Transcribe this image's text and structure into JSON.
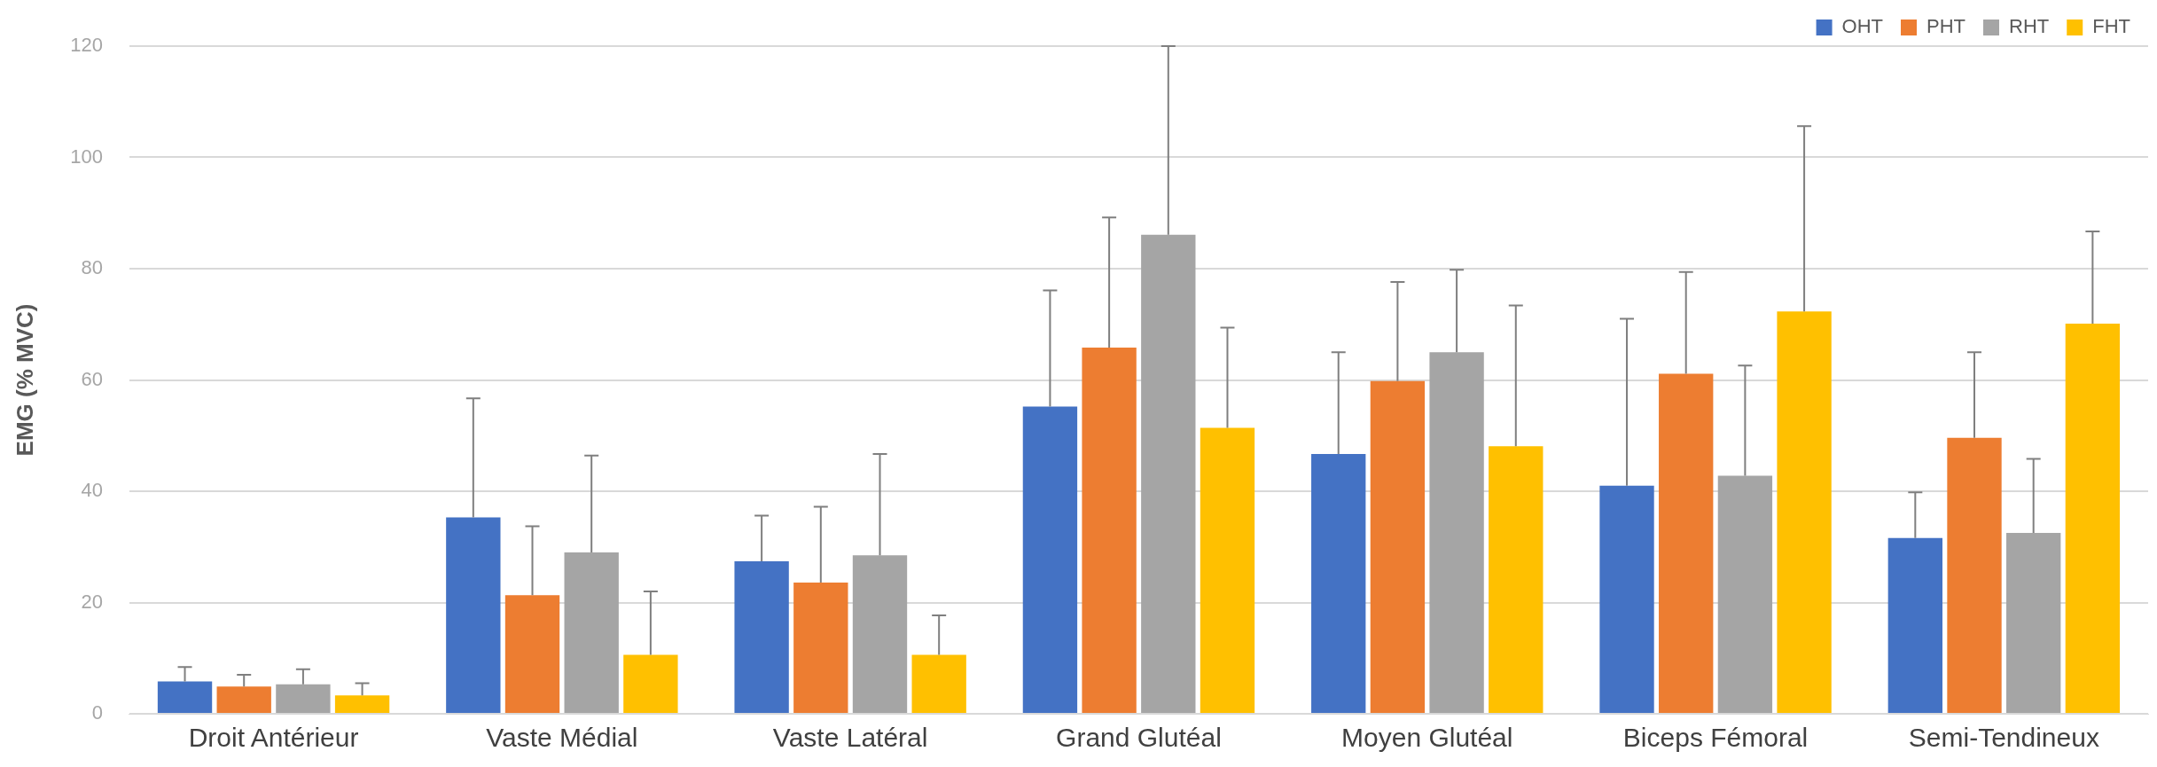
{
  "chart_data": {
    "type": "bar",
    "ylabel": "EMG (% MVC)",
    "categories": [
      "Droit Antérieur",
      "Vaste Médial",
      "Vaste Latéral",
      "Grand Glutéal",
      "Moyen Glutéal",
      "Biceps Fémoral",
      "Semi-Tendineux"
    ],
    "series": [
      {
        "name": "OHT",
        "color": "#4472c4",
        "values": [
          5.8,
          35.3,
          27.4,
          55.2,
          46.7,
          41,
          31.6
        ],
        "errors": [
          [
            5.8,
            8.4
          ],
          [
            35.3,
            56.7
          ],
          [
            27.4,
            35.6
          ],
          [
            55.2,
            76.1
          ],
          [
            46.7,
            65
          ],
          [
            41,
            71
          ],
          [
            31.6,
            39.8
          ]
        ]
      },
      {
        "name": "PHT",
        "color": "#ed7d31",
        "values": [
          4.9,
          21.3,
          23.6,
          65.8,
          59.8,
          61.1,
          49.6
        ],
        "errors": [
          [
            4.9,
            7
          ],
          [
            21.3,
            33.7
          ],
          [
            23.6,
            37.2
          ],
          [
            65.8,
            89.2
          ],
          [
            59.8,
            77.6
          ],
          [
            61.1,
            79.4
          ],
          [
            49.6,
            65
          ]
        ]
      },
      {
        "name": "RHT",
        "color": "#a5a5a5",
        "values": [
          5.3,
          29,
          28.5,
          86.1,
          65,
          42.8,
          32.5
        ],
        "errors": [
          [
            5.3,
            8
          ],
          [
            29,
            46.4
          ],
          [
            28.5,
            46.7
          ],
          [
            86.1,
            120
          ],
          [
            65,
            79.8
          ],
          [
            42.8,
            62.6
          ],
          [
            32.5,
            45.8
          ]
        ]
      },
      {
        "name": "FHT",
        "color": "#ffc000",
        "values": [
          3.3,
          10.6,
          10.6,
          51.4,
          48.1,
          72.3,
          70.1
        ],
        "errors": [
          [
            3.3,
            5.5
          ],
          [
            10.6,
            22
          ],
          [
            10.6,
            17.7
          ],
          [
            51.4,
            69.4
          ],
          [
            48.1,
            73.4
          ],
          [
            72.3,
            105.6
          ],
          [
            70.1,
            86.7
          ]
        ]
      }
    ],
    "ylim": [
      0,
      120
    ],
    "yticks": [
      0,
      20,
      40,
      60,
      80,
      100,
      120
    ],
    "grid": "y",
    "legend": "top right"
  }
}
